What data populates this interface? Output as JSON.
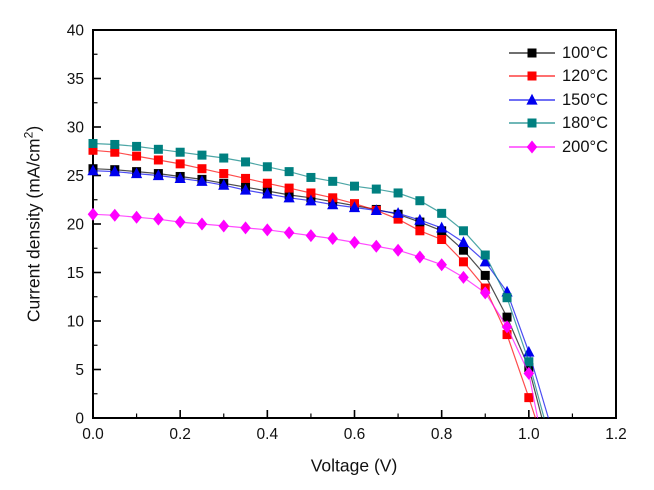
{
  "figure": {
    "background": "#ffffff",
    "ylabel_prefix": "Current density (mA/cm",
    "ylabel_sup": "2",
    "ylabel_suffix": ")"
  },
  "chart_data": {
    "type": "line",
    "title": "",
    "xlabel": "Voltage (V)",
    "ylabel": "Current density (mA/cm2)",
    "xlim": [
      0,
      1.2
    ],
    "ylim": [
      0,
      40
    ],
    "grid": false,
    "legend_position": "top-right-inside",
    "legend_frame": false,
    "x_tick_labels": [
      "0.0",
      "0.2",
      "0.4",
      "0.6",
      "0.8",
      "1.0",
      "1.2"
    ],
    "x_tick_values": [
      0.0,
      0.2,
      0.4,
      0.6,
      0.8,
      1.0,
      1.2
    ],
    "x_minor_tick_values": [
      0.1,
      0.3,
      0.5,
      0.7,
      0.9,
      1.1
    ],
    "y_tick_labels": [
      "0",
      "5",
      "10",
      "15",
      "20",
      "25",
      "30",
      "35",
      "40"
    ],
    "y_tick_values": [
      0,
      5,
      10,
      15,
      20,
      25,
      30,
      35,
      40
    ],
    "y_minor_tick_values": [
      2.5,
      7.5,
      12.5,
      17.5,
      22.5,
      27.5,
      32.5,
      37.5
    ],
    "axis_color": "#000000",
    "series": [
      {
        "name": "100°C",
        "key": "100c",
        "color": "#000000",
        "marker": "square",
        "points": [
          [
            0.0,
            25.7
          ],
          [
            0.05,
            25.6
          ],
          [
            0.1,
            25.4
          ],
          [
            0.15,
            25.2
          ],
          [
            0.2,
            24.9
          ],
          [
            0.25,
            24.6
          ],
          [
            0.3,
            24.2
          ],
          [
            0.35,
            23.8
          ],
          [
            0.4,
            23.4
          ],
          [
            0.45,
            23.0
          ],
          [
            0.5,
            22.7
          ],
          [
            0.55,
            22.3
          ],
          [
            0.6,
            21.9
          ],
          [
            0.65,
            21.5
          ],
          [
            0.7,
            21.0
          ],
          [
            0.75,
            20.2
          ],
          [
            0.8,
            19.3
          ],
          [
            0.85,
            17.3
          ],
          [
            0.9,
            14.7
          ],
          [
            0.95,
            10.4
          ],
          [
            1.0,
            5.2
          ],
          [
            1.03,
            0
          ]
        ]
      },
      {
        "name": "120°C",
        "key": "120c",
        "color": "#fe0000",
        "marker": "square",
        "points": [
          [
            0.0,
            27.6
          ],
          [
            0.05,
            27.4
          ],
          [
            0.1,
            27.0
          ],
          [
            0.15,
            26.6
          ],
          [
            0.2,
            26.2
          ],
          [
            0.25,
            25.7
          ],
          [
            0.3,
            25.2
          ],
          [
            0.35,
            24.7
          ],
          [
            0.4,
            24.2
          ],
          [
            0.45,
            23.7
          ],
          [
            0.5,
            23.2
          ],
          [
            0.55,
            22.7
          ],
          [
            0.6,
            22.1
          ],
          [
            0.65,
            21.4
          ],
          [
            0.7,
            20.5
          ],
          [
            0.75,
            19.3
          ],
          [
            0.8,
            18.4
          ],
          [
            0.85,
            16.1
          ],
          [
            0.9,
            13.4
          ],
          [
            0.95,
            8.6
          ],
          [
            1.0,
            2.1
          ],
          [
            1.015,
            0
          ]
        ]
      },
      {
        "name": "150°C",
        "key": "150c",
        "color": "#0000ee",
        "marker": "triangle",
        "points": [
          [
            0.0,
            25.5
          ],
          [
            0.05,
            25.4
          ],
          [
            0.1,
            25.2
          ],
          [
            0.15,
            25.0
          ],
          [
            0.2,
            24.7
          ],
          [
            0.25,
            24.4
          ],
          [
            0.3,
            24.0
          ],
          [
            0.35,
            23.5
          ],
          [
            0.4,
            23.1
          ],
          [
            0.45,
            22.7
          ],
          [
            0.5,
            22.4
          ],
          [
            0.55,
            22.0
          ],
          [
            0.6,
            21.7
          ],
          [
            0.65,
            21.4
          ],
          [
            0.7,
            21.1
          ],
          [
            0.75,
            20.4
          ],
          [
            0.8,
            19.6
          ],
          [
            0.85,
            18.1
          ],
          [
            0.9,
            16.1
          ],
          [
            0.95,
            13.0
          ],
          [
            1.0,
            6.8
          ],
          [
            1.045,
            0
          ]
        ]
      },
      {
        "name": "180°C",
        "key": "180c",
        "color": "#008080",
        "marker": "square",
        "points": [
          [
            0.0,
            28.3
          ],
          [
            0.05,
            28.2
          ],
          [
            0.1,
            28.0
          ],
          [
            0.15,
            27.7
          ],
          [
            0.2,
            27.4
          ],
          [
            0.25,
            27.1
          ],
          [
            0.3,
            26.8
          ],
          [
            0.35,
            26.4
          ],
          [
            0.4,
            25.9
          ],
          [
            0.45,
            25.4
          ],
          [
            0.5,
            24.8
          ],
          [
            0.55,
            24.4
          ],
          [
            0.6,
            23.9
          ],
          [
            0.65,
            23.6
          ],
          [
            0.7,
            23.2
          ],
          [
            0.75,
            22.4
          ],
          [
            0.8,
            21.1
          ],
          [
            0.85,
            19.3
          ],
          [
            0.9,
            16.8
          ],
          [
            0.95,
            12.4
          ],
          [
            1.0,
            5.8
          ],
          [
            1.035,
            0
          ]
        ]
      },
      {
        "name": "200°C",
        "key": "200c",
        "color": "#ff00ff",
        "marker": "diamond",
        "points": [
          [
            0.0,
            21.0
          ],
          [
            0.05,
            20.9
          ],
          [
            0.1,
            20.7
          ],
          [
            0.15,
            20.5
          ],
          [
            0.2,
            20.2
          ],
          [
            0.25,
            20.0
          ],
          [
            0.3,
            19.8
          ],
          [
            0.35,
            19.6
          ],
          [
            0.4,
            19.4
          ],
          [
            0.45,
            19.1
          ],
          [
            0.5,
            18.8
          ],
          [
            0.55,
            18.5
          ],
          [
            0.6,
            18.1
          ],
          [
            0.65,
            17.7
          ],
          [
            0.7,
            17.3
          ],
          [
            0.75,
            16.6
          ],
          [
            0.8,
            15.8
          ],
          [
            0.85,
            14.5
          ],
          [
            0.9,
            12.9
          ],
          [
            0.95,
            9.4
          ],
          [
            1.0,
            4.6
          ],
          [
            1.02,
            0
          ]
        ]
      }
    ]
  }
}
